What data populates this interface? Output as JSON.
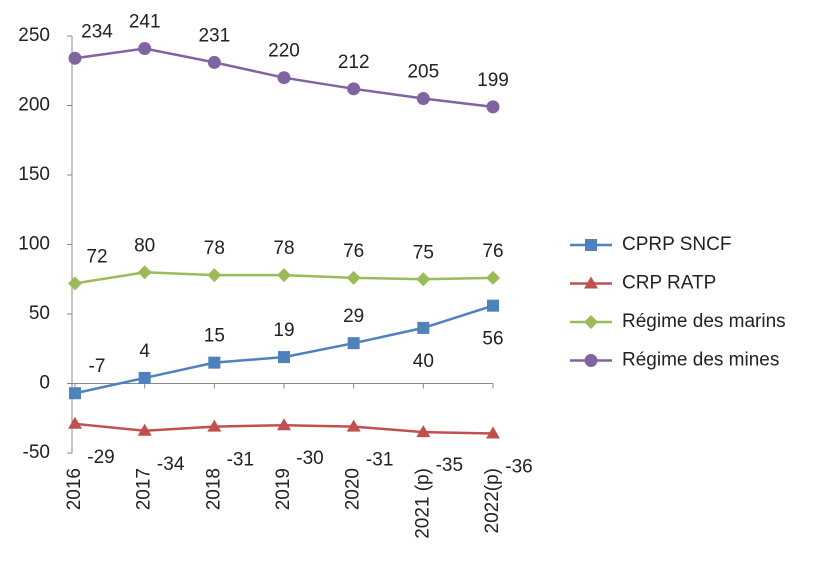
{
  "chart_data": {
    "type": "line",
    "categories": [
      "2016",
      "2017",
      "2018",
      "2019",
      "2020",
      "2021 (p)",
      "2022(p)"
    ],
    "series": [
      {
        "name": "CPRP SNCF",
        "color": "#4f81bd",
        "marker": "square",
        "values": [
          -7,
          4,
          15,
          19,
          29,
          40,
          56
        ]
      },
      {
        "name": "CRP RATP",
        "color": "#c0504d",
        "marker": "triangle",
        "values": [
          -29,
          -34,
          -31,
          -30,
          -31,
          -35,
          -36
        ]
      },
      {
        "name": "Régime des marins",
        "color": "#9bbb59",
        "marker": "diamond",
        "values": [
          72,
          80,
          78,
          78,
          76,
          75,
          76
        ]
      },
      {
        "name": "Régime des mines",
        "color": "#8064a2",
        "marker": "circle",
        "values": [
          234,
          241,
          231,
          220,
          212,
          205,
          199
        ]
      }
    ],
    "ylim": [
      -50,
      250
    ],
    "yticks": [
      -50,
      0,
      50,
      100,
      150,
      200,
      250
    ],
    "legend": "right"
  }
}
